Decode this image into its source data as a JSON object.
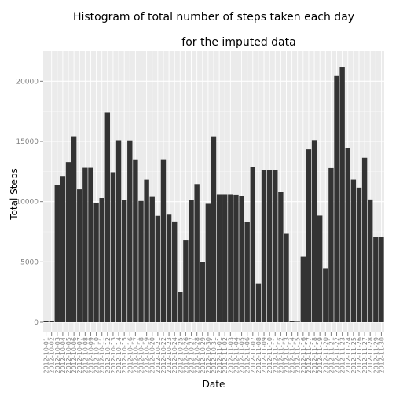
{
  "chart_data": {
    "type": "bar",
    "title_line1": "Histogram of total number of steps taken each day",
    "title_line2": "for the imputed data",
    "xlabel": "Date",
    "ylabel": "Total Steps",
    "ylim": [
      0,
      22500
    ],
    "yticks": [
      0,
      5000,
      10000,
      15000,
      20000
    ],
    "grid": true,
    "categories": [
      "2012-10-01",
      "2012-10-02",
      "2012-10-03",
      "2012-10-04",
      "2012-10-05",
      "2012-10-06",
      "2012-10-07",
      "2012-10-08",
      "2012-10-09",
      "2012-10-10",
      "2012-10-11",
      "2012-10-12",
      "2012-10-13",
      "2012-10-14",
      "2012-10-15",
      "2012-10-16",
      "2012-10-17",
      "2012-10-18",
      "2012-10-19",
      "2012-10-20",
      "2012-10-21",
      "2012-10-22",
      "2012-10-23",
      "2012-10-24",
      "2012-10-25",
      "2012-10-26",
      "2012-10-27",
      "2012-10-28",
      "2012-10-29",
      "2012-10-30",
      "2012-10-31",
      "2012-11-01",
      "2012-11-02",
      "2012-11-03",
      "2012-11-04",
      "2012-11-05",
      "2012-11-06",
      "2012-11-07",
      "2012-11-08",
      "2012-11-09",
      "2012-11-10",
      "2012-11-11",
      "2012-11-12",
      "2012-11-13",
      "2012-11-14",
      "2012-11-15",
      "2012-11-16",
      "2012-11-17",
      "2012-11-18",
      "2012-11-19",
      "2012-11-20",
      "2012-11-21",
      "2012-11-22",
      "2012-11-23",
      "2012-11-24",
      "2012-11-25",
      "2012-11-26",
      "2012-11-27",
      "2012-11-28",
      "2012-11-29",
      "2012-11-30"
    ],
    "values": [
      126,
      126,
      11352,
      12116,
      13294,
      15420,
      11015,
      12811,
      12811,
      9900,
      10304,
      17382,
      12426,
      15098,
      10139,
      15084,
      13452,
      10056,
      11829,
      10395,
      8821,
      13460,
      8918,
      8355,
      2492,
      6778,
      10119,
      11458,
      5018,
      9819,
      15414,
      10600,
      10600,
      10600,
      10571,
      10439,
      8334,
      12883,
      3219,
      12600,
      12600,
      12600,
      10765,
      7336,
      126,
      41,
      5441,
      14339,
      15110,
      8841,
      4472,
      12787,
      20427,
      21194,
      14478,
      11834,
      11162,
      13646,
      10183,
      7047,
      7047
    ],
    "bar_color": "#333333",
    "panel_color": "#ebebeb",
    "grid_color": "#ffffff"
  }
}
